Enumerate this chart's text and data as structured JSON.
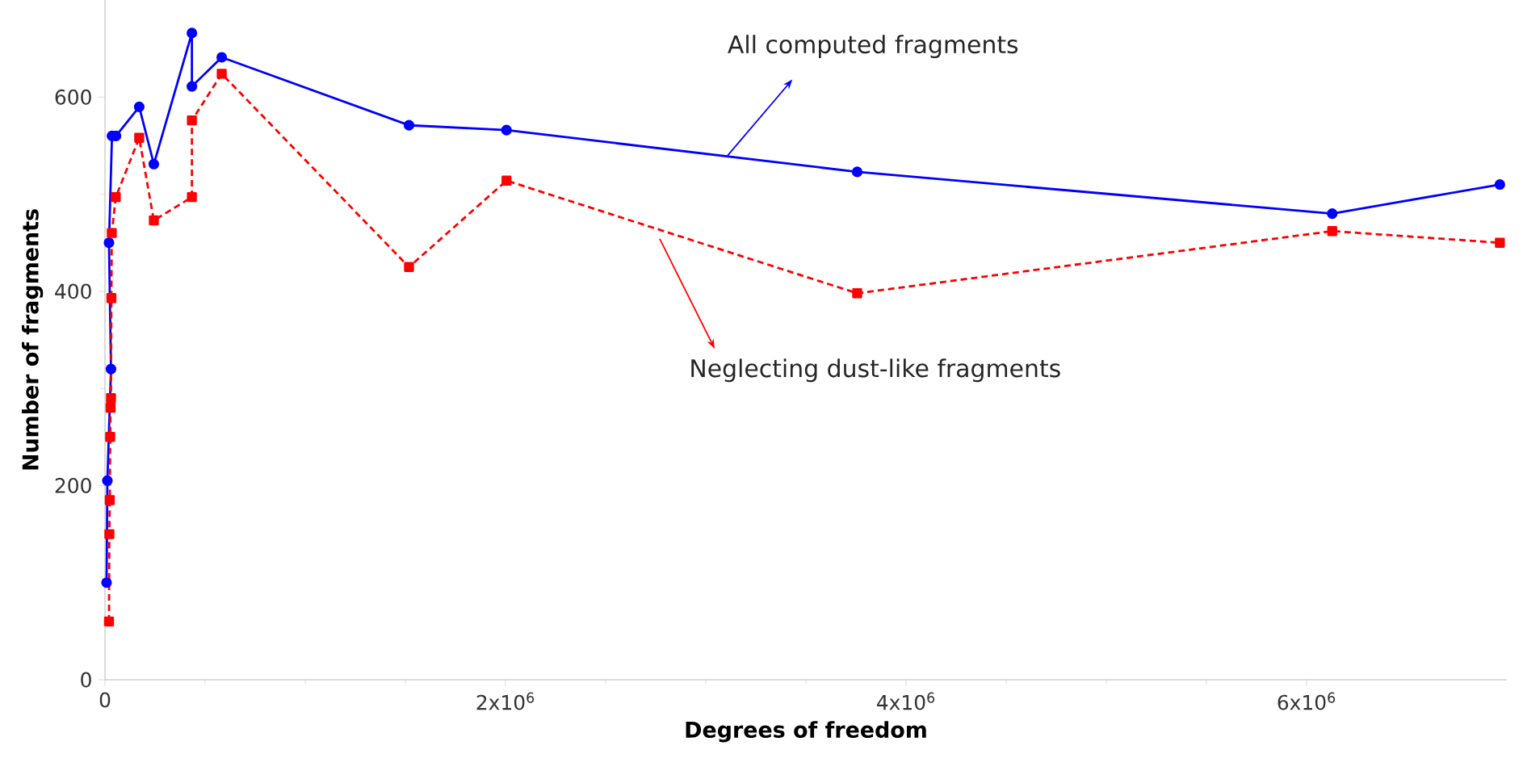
{
  "chart_data": {
    "type": "line",
    "xlabel": "Degrees of freedom",
    "ylabel": "Number of fragments",
    "xlim": [
      0,
      7000000
    ],
    "ylim": [
      0,
      700
    ],
    "xticks": [
      0,
      {
        "value": 2000000,
        "label": "2x10$^{6}$"
      },
      {
        "value": 4000000,
        "label": "4x10$^{6}$"
      },
      {
        "value": 6000000,
        "label": "6x10$^{6}$"
      }
    ],
    "yticks": [
      0,
      200,
      400,
      600
    ],
    "series": [
      {
        "color": "#0000ff",
        "marker": "circle",
        "line_style": "solid",
        "x": [
          8000,
          12000,
          30000,
          20000,
          35000,
          55000,
          171000,
          244000,
          434000,
          434000,
          583000,
          1518000,
          2005000,
          3756000,
          6128000,
          6965000
        ],
        "values": [
          100,
          205,
          320,
          450,
          560,
          560,
          590,
          531,
          666,
          611,
          641,
          571,
          566,
          523,
          480,
          510
        ]
      },
      {
        "color": "#ff0000",
        "marker": "square",
        "line_style": "dashed",
        "x": [
          20000,
          22000,
          24000,
          26000,
          28000,
          30000,
          32000,
          34000,
          54000,
          171000,
          244000,
          434000,
          434000,
          583000,
          1518000,
          2005000,
          3756000,
          6128000,
          6965000
        ],
        "values": [
          60,
          150,
          185,
          250,
          280,
          290,
          393,
          460,
          497,
          558,
          473,
          497,
          576,
          624,
          425,
          514,
          398,
          462,
          450
        ]
      }
    ],
    "annotations": [
      {
        "text": "All computed fragments",
        "x": 3110000,
        "y": 540
      },
      {
        "text": "Neglecting dust-like fragments",
        "x": 2770000,
        "y": 454
      }
    ]
  }
}
